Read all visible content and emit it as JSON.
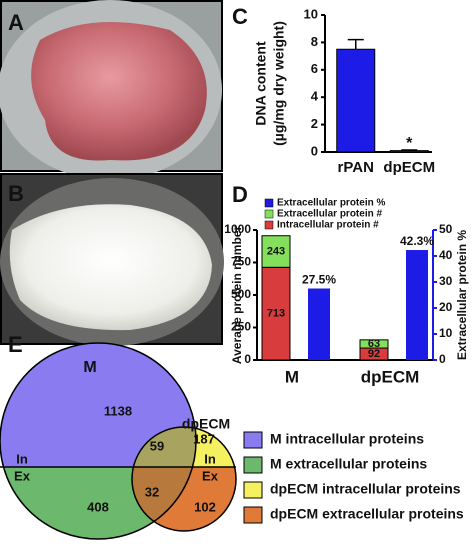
{
  "panel_labels": [
    "A",
    "B",
    "C",
    "D",
    "E"
  ],
  "chart_data": [
    {
      "type": "bar",
      "categories": [
        "rPAN",
        "dpECM"
      ],
      "values": [
        7.5,
        0.1
      ],
      "errors": [
        0.7,
        0.05
      ],
      "color": "#1c1ce6",
      "ylabel": [
        "DNA content",
        "(µg/mg dry weight)"
      ],
      "ylim": [
        0,
        10
      ],
      "yticks": [
        0,
        2,
        4,
        6,
        8,
        10
      ],
      "annotation": "*",
      "grid": false
    },
    {
      "type": "stacked_bar",
      "categories": [
        "M",
        "dpECM"
      ],
      "series": [
        {
          "name": "Intracellular protein #",
          "color": "#d83c3c",
          "values": [
            713,
            92
          ]
        },
        {
          "name": "Extracellular protein #",
          "color": "#84e05c",
          "values": [
            243,
            63
          ]
        },
        {
          "name": "Extracellular protein %",
          "color": "#1c1ce6",
          "values": [
            27.5,
            42.3
          ],
          "value_labels": [
            "27.5%",
            "42.3%"
          ],
          "axis": "y2"
        }
      ],
      "ylabel": "Average protein number",
      "y2label": "Extracellular protein %",
      "ylim": [
        0,
        1000
      ],
      "yticks": [
        0,
        250,
        500,
        750,
        1000
      ],
      "y2lim": [
        0,
        50
      ],
      "y2ticks": [
        0,
        10,
        20,
        30,
        40,
        50
      ]
    },
    {
      "type": "venn",
      "sets": [
        "M",
        "dpECM"
      ],
      "split_labels": [
        "In",
        "Ex"
      ],
      "counts": [
        1138,
        408,
        59,
        32,
        187,
        102
      ],
      "legend": [
        {
          "name": "M intracellular proteins",
          "color": "#8a7cf0"
        },
        {
          "name": "M extracellular proteins",
          "color": "#6cb86c"
        },
        {
          "name": "dpECM intracellular proteins",
          "color": "#f4f060"
        },
        {
          "name": "dpECM extracellular proteins",
          "color": "#e07a38"
        }
      ]
    }
  ]
}
